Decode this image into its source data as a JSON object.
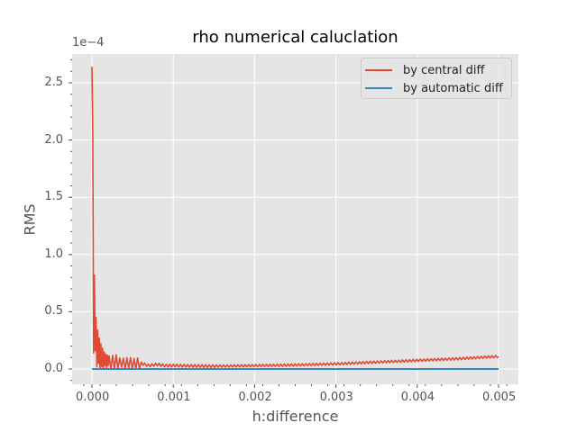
{
  "figure": {
    "title": "rho numerical caluclation",
    "xlabel": "h:difference",
    "ylabel": "RMS",
    "y_offset_text": "1e−4",
    "background": "#ffffff",
    "axes_background": "#e5e5e5",
    "grid_color": "#ffffff"
  },
  "legend": {
    "items": [
      {
        "label": "by central diff",
        "color": "#e24a33"
      },
      {
        "label": "by automatic diff",
        "color": "#348abd"
      }
    ]
  },
  "chart_data": {
    "type": "line",
    "title": "rho numerical caluclation",
    "xlabel": "h:difference",
    "ylabel": "RMS",
    "y_scale_note": "values in units of 1e-4",
    "xlim": [
      -0.00011,
      0.00522
    ],
    "ylim": [
      -0.13,
      2.78
    ],
    "xticks": [
      0.0,
      0.001,
      0.002,
      0.003,
      0.004,
      0.005
    ],
    "xtick_labels": [
      "0.000",
      "0.001",
      "0.002",
      "0.003",
      "0.004",
      "0.005"
    ],
    "yticks": [
      0.0,
      0.5,
      1.0,
      1.5,
      2.0,
      2.5
    ],
    "ytick_labels": [
      "0.0",
      "0.5",
      "1.0",
      "1.5",
      "2.0",
      "2.5"
    ],
    "grid": true,
    "legend_position": "upper right",
    "series": [
      {
        "name": "by central diff",
        "color": "#e24a33",
        "x": [
          0.0,
          1e-05,
          2e-05,
          3e-05,
          4e-05,
          5e-05,
          6e-05,
          7e-05,
          8e-05,
          9e-05,
          0.0001,
          0.00011,
          0.00012,
          0.00013,
          0.00014,
          0.00015,
          0.00016,
          0.00017,
          0.00018,
          0.00019,
          0.0002,
          0.00022,
          0.00024,
          0.00026,
          0.00028,
          0.0003,
          0.00033,
          0.00036,
          0.0004,
          0.00045,
          0.0005,
          0.0006,
          0.0007,
          0.0008,
          0.0009,
          0.001,
          0.0015,
          0.002,
          0.0025,
          0.003,
          0.0035,
          0.004,
          0.0045,
          0.005
        ],
        "y": [
          2.64,
          2.1,
          0.14,
          0.82,
          0.16,
          0.45,
          0.02,
          0.34,
          0.05,
          0.27,
          0.0,
          0.22,
          0.02,
          0.18,
          0.0,
          0.15,
          0.03,
          0.13,
          0.01,
          0.12,
          0.03,
          0.1,
          0.02,
          0.09,
          0.02,
          0.08,
          0.03,
          0.07,
          0.03,
          0.06,
          0.04,
          0.05,
          0.03,
          0.04,
          0.03,
          0.03,
          0.025,
          0.03,
          0.035,
          0.045,
          0.06,
          0.075,
          0.09,
          0.11
        ]
      },
      {
        "name": "by automatic diff",
        "color": "#348abd",
        "x": [
          0.0,
          0.005
        ],
        "y": [
          0.0,
          0.0
        ]
      }
    ]
  }
}
